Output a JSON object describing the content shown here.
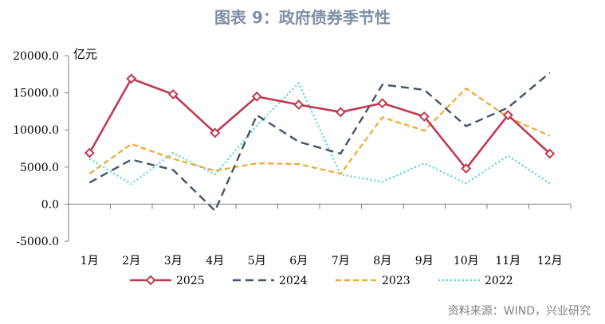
{
  "chart_data": {
    "type": "line",
    "title": "图表 9：政府债券季节性",
    "ylabel": "亿元",
    "xlabel": "",
    "ylim": [
      -5000,
      20000
    ],
    "yticks": [
      20000,
      15000,
      10000,
      5000,
      0,
      -5000
    ],
    "ytick_labels": [
      "20000.0",
      "15000.0",
      "10000.0",
      "5000.0",
      "0.0",
      "-5000.0"
    ],
    "categories": [
      "1月",
      "2月",
      "3月",
      "4月",
      "5月",
      "6月",
      "7月",
      "8月",
      "9月",
      "10月",
      "11月",
      "12月"
    ],
    "series": [
      {
        "name": "2025",
        "color": "#c0394f",
        "style": "solid-diamond",
        "values": [
          6900,
          16900,
          14800,
          9600,
          14500,
          13400,
          12400,
          13600,
          11800,
          4800,
          12000,
          6800
        ]
      },
      {
        "name": "2024",
        "color": "#44546a",
        "style": "dashed",
        "values": [
          2900,
          6000,
          4600,
          -900,
          12000,
          8400,
          6800,
          16100,
          15400,
          10500,
          13000,
          17700
        ]
      },
      {
        "name": "2023",
        "color": "#f0a830",
        "style": "dashed-short",
        "values": [
          4100,
          8100,
          6100,
          4500,
          5500,
          5400,
          4100,
          11700,
          9900,
          15600,
          11700,
          9200
        ]
      },
      {
        "name": "2022",
        "color": "#4fd6d6",
        "style": "dotted",
        "values": [
          6100,
          2700,
          6900,
          4000,
          10600,
          16300,
          4000,
          3000,
          5500,
          2800,
          6500,
          2800
        ]
      }
    ],
    "legend_position": "bottom"
  },
  "source_note": "资料来源：WIND，兴业研究"
}
